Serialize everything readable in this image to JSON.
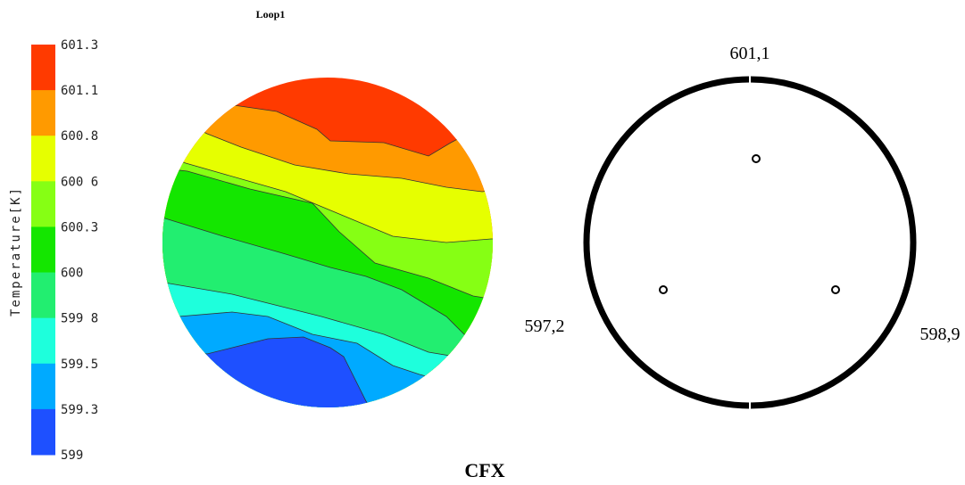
{
  "title": "Loop1",
  "legend": {
    "label": "Temperature[K]",
    "ticks": [
      "601.3",
      "601.1",
      "600.8",
      "600 6",
      "600.3",
      "600",
      "599 8",
      "599.5",
      "599.3",
      "599"
    ],
    "colors": [
      "#ff3a00",
      "#ff9a00",
      "#e6ff00",
      "#86ff14",
      "#14e600",
      "#22ee70",
      "#1effdc",
      "#00aaff",
      "#1e50ff"
    ]
  },
  "caption": "CFX",
  "sensors": [
    {
      "label": "601,1"
    },
    {
      "label": "597,2"
    },
    {
      "label": "598,9"
    }
  ]
}
